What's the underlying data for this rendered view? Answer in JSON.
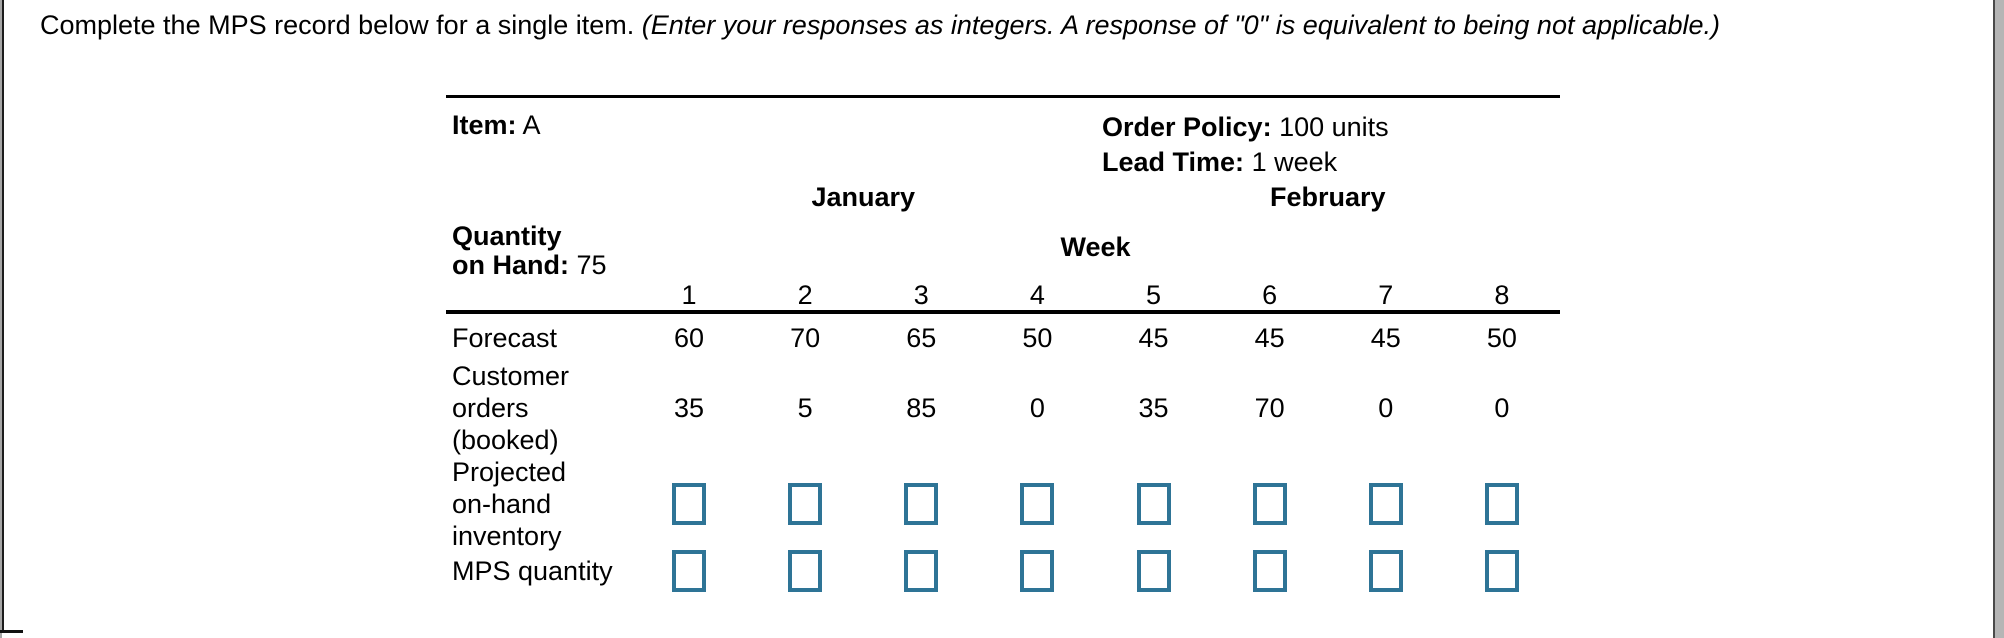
{
  "instruction": {
    "normal": "Complete the MPS record below for a single item. ",
    "italic": "(Enter your responses as integers. A response of \"0\" is equivalent to being not applicable.)"
  },
  "record": {
    "item_label": "Item:",
    "item_value": "A",
    "order_policy_label": "Order Policy:",
    "order_policy_value": "100 units",
    "lead_time_label": "Lead Time:",
    "lead_time_value": "1 week",
    "quantity_on_hand_label_line1": "Quantity",
    "quantity_on_hand_label_line2": "on Hand:",
    "quantity_on_hand_value": "75",
    "months": [
      "January",
      "February"
    ],
    "week_label": "Week",
    "week_numbers": [
      "1",
      "2",
      "3",
      "4",
      "5",
      "6",
      "7",
      "8"
    ],
    "rows": {
      "forecast": {
        "label": "Forecast",
        "values": [
          60,
          70,
          65,
          50,
          45,
          45,
          45,
          50
        ]
      },
      "customer_orders": {
        "label_lines": [
          "Customer",
          "orders",
          "(booked)"
        ],
        "values": [
          35,
          5,
          85,
          0,
          35,
          70,
          0,
          0
        ]
      },
      "projected_inventory": {
        "label_lines": [
          "Projected",
          "on-hand",
          "inventory"
        ],
        "input_value": ""
      },
      "mps_quantity": {
        "label": "MPS quantity",
        "input_value": ""
      }
    }
  },
  "colors": {
    "input_border": "#2e7496",
    "text": "#000000",
    "rule": "#000000"
  }
}
